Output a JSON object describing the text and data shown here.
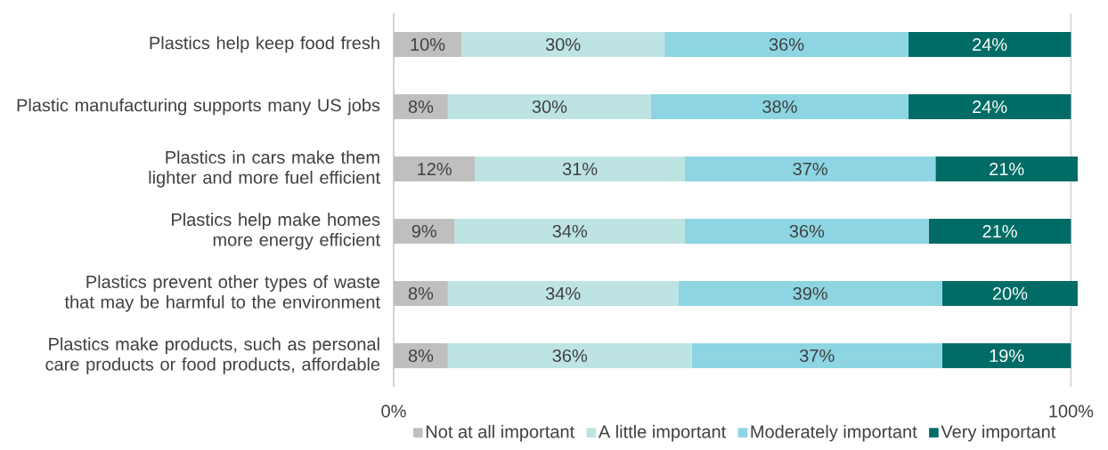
{
  "chart_data": {
    "type": "bar",
    "orientation": "horizontal",
    "stacked": true,
    "categories": [
      "Plastics help keep food fresh",
      "Plastic manufacturing supports many US jobs",
      "Plastics in cars make them lighter and more fuel efficient",
      "Plastics help make homes more energy efficient",
      "Plastics prevent other types of waste that may be harmful to the environment",
      "Plastics make products, such as personal care products or food products, affordable"
    ],
    "series": [
      {
        "name": "Not at all important",
        "color": "#bfbfbf",
        "values": [
          10,
          8,
          12,
          9,
          8,
          8
        ],
        "value_labels": [
          "10%",
          "8%",
          "12%",
          "9%",
          "8%",
          "8%"
        ]
      },
      {
        "name": "A little important",
        "color": "#bde4e3",
        "values": [
          30,
          30,
          31,
          34,
          34,
          36
        ],
        "value_labels": [
          "30%",
          "30%",
          "31%",
          "34%",
          "34%",
          "36%"
        ]
      },
      {
        "name": "Moderately important",
        "color": "#8dd5e3",
        "values": [
          36,
          38,
          37,
          36,
          39,
          37
        ],
        "value_labels": [
          "36%",
          "38%",
          "37%",
          "36%",
          "39%",
          "37%"
        ]
      },
      {
        "name": "Very important",
        "color": "#006c65",
        "values": [
          24,
          24,
          21,
          21,
          20,
          19
        ],
        "value_labels": [
          "24%",
          "24%",
          "21%",
          "21%",
          "20%",
          "19%"
        ]
      }
    ],
    "xlim": [
      0,
      101
    ],
    "xticks": [
      {
        "value": 0,
        "label": "0%"
      },
      {
        "value": 100,
        "label": "100%"
      }
    ],
    "grid": "x",
    "legend": "bottom"
  }
}
